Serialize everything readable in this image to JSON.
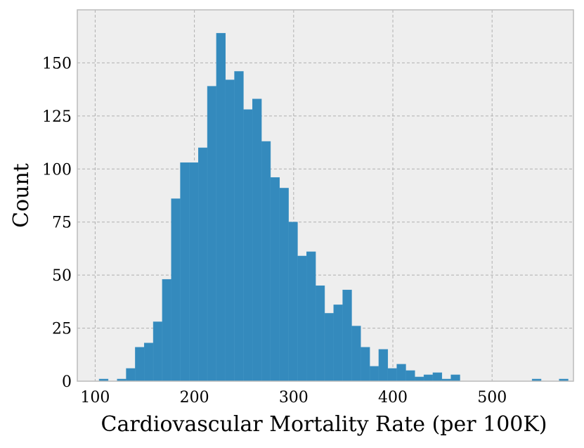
{
  "chart_data": {
    "type": "bar",
    "title": "",
    "xlabel": "Cardiovascular Mortality Rate (per 100K)",
    "ylabel": "Count",
    "xlim": [
      82,
      582
    ],
    "ylim": [
      0,
      175
    ],
    "xticks": [
      100,
      200,
      300,
      400,
      500
    ],
    "yticks": [
      0,
      25,
      50,
      75,
      100,
      125,
      150
    ],
    "grid": true,
    "bin_width": 9.09,
    "bin_start": 104.0,
    "counts": [
      1,
      0,
      1,
      6,
      16,
      18,
      28,
      48,
      86,
      103,
      103,
      110,
      139,
      164,
      142,
      146,
      128,
      133,
      113,
      96,
      91,
      75,
      59,
      61,
      45,
      32,
      36,
      43,
      26,
      16,
      7,
      15,
      6,
      8,
      5,
      2,
      3,
      4,
      1,
      3,
      0,
      0,
      0,
      0,
      0,
      0,
      0,
      0,
      1,
      0,
      0,
      1
    ],
    "colors": {
      "bar": "#348abd",
      "background": "#eeeeee",
      "frame": "#bcbcbc"
    }
  }
}
